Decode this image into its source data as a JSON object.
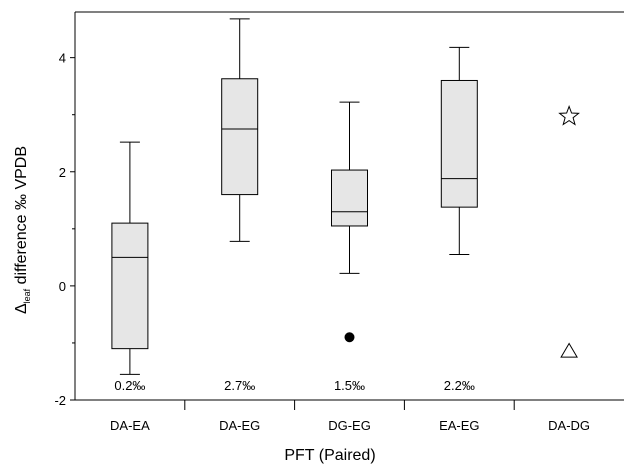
{
  "chart_data": {
    "type": "box",
    "xlabel": "PFT (Paired)",
    "ylabel_symbol": "Δ",
    "ylabel_subscript": "leaf",
    "ylabel_rest": " difference ‰ VPDB",
    "ylim": [
      -2,
      4.8
    ],
    "yticks": [
      "-2",
      "0",
      "2",
      "4"
    ],
    "categories": [
      "DA-EA",
      "DA-EG",
      "DG-EG",
      "EA-EG",
      "DA-DG"
    ],
    "boxes": [
      {
        "category": "DA-EA",
        "whisker_low": -1.55,
        "q1": -1.1,
        "median": 0.5,
        "q3": 1.1,
        "whisker_high": 2.52,
        "annotation": "0.2‰"
      },
      {
        "category": "DA-EG",
        "whisker_low": 0.78,
        "q1": 1.6,
        "median": 2.75,
        "q3": 3.63,
        "whisker_high": 4.68,
        "annotation": "2.7‰"
      },
      {
        "category": "DG-EG",
        "whisker_low": 0.22,
        "q1": 1.05,
        "median": 1.3,
        "q3": 2.03,
        "whisker_high": 3.22,
        "annotation": "1.5‰"
      },
      {
        "category": "EA-EG",
        "whisker_low": 0.55,
        "q1": 1.38,
        "median": 1.88,
        "q3": 3.6,
        "whisker_high": 4.18,
        "annotation": "2.2‰"
      }
    ],
    "points": [
      {
        "category": "DG-EG",
        "y": -0.9,
        "marker": "filled-circle"
      },
      {
        "category": "DA-DG",
        "y": 2.97,
        "marker": "open-star"
      },
      {
        "category": "DA-DG",
        "y": -1.15,
        "marker": "open-triangle"
      }
    ],
    "box_fill": "#e6e6e6",
    "line_color": "#000000"
  }
}
